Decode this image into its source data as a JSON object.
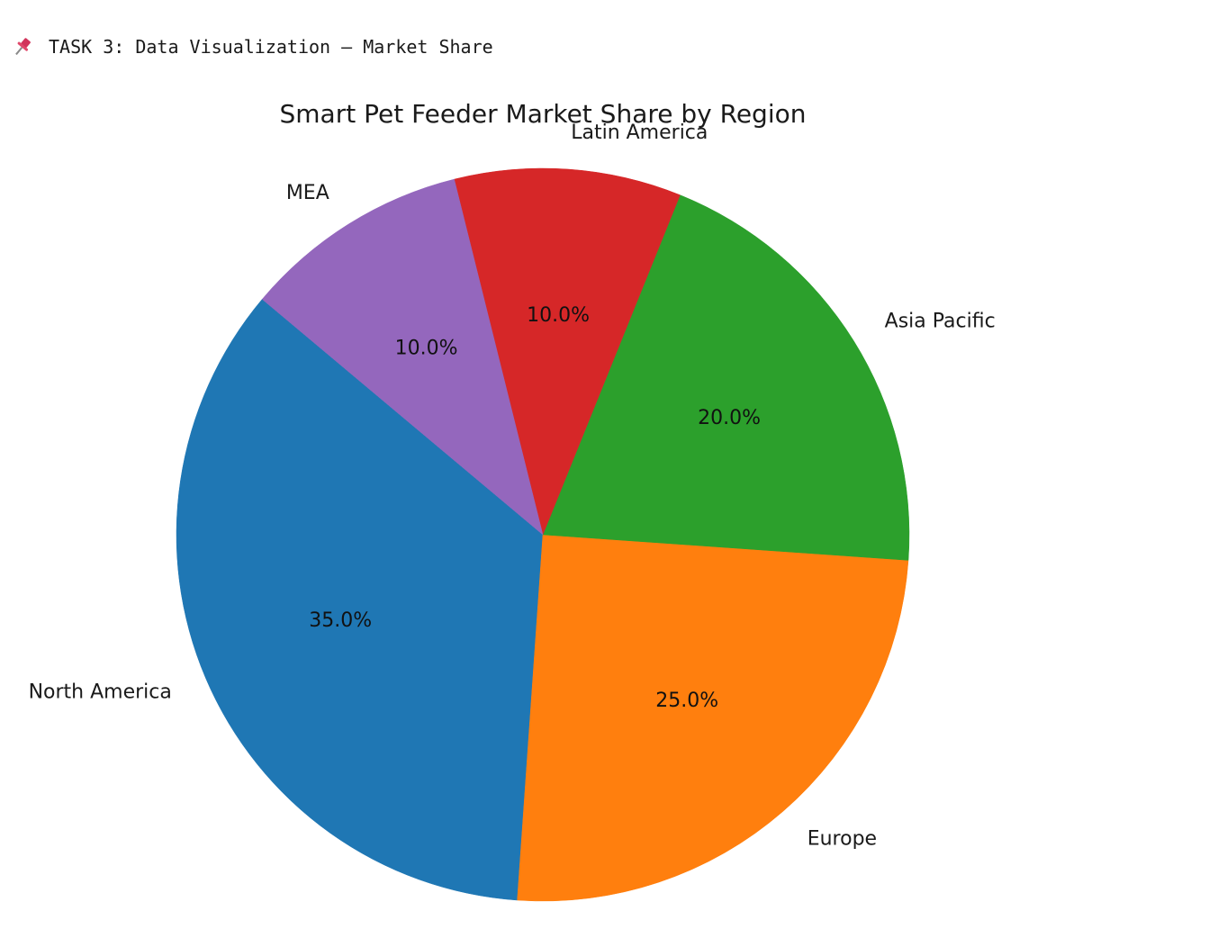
{
  "header": {
    "text": "TASK 3: Data Visualization – Market Share",
    "icon": "pushpin-icon"
  },
  "chart_data": {
    "type": "pie",
    "title": "Smart Pet Feeder Market Share by Region",
    "categories": [
      "North America",
      "Europe",
      "Asia Pacific",
      "Latin America",
      "MEA"
    ],
    "values": [
      35,
      25,
      20,
      10,
      10
    ],
    "percent_labels": [
      "35.0%",
      "25.0%",
      "20.0%",
      "10.0%",
      "10.0%"
    ],
    "colors": [
      "#1f77b4",
      "#ff7f0e",
      "#2ca02c",
      "#d62728",
      "#9467bd"
    ],
    "start_angle_deg": 140,
    "direction": "counterclockwise"
  }
}
